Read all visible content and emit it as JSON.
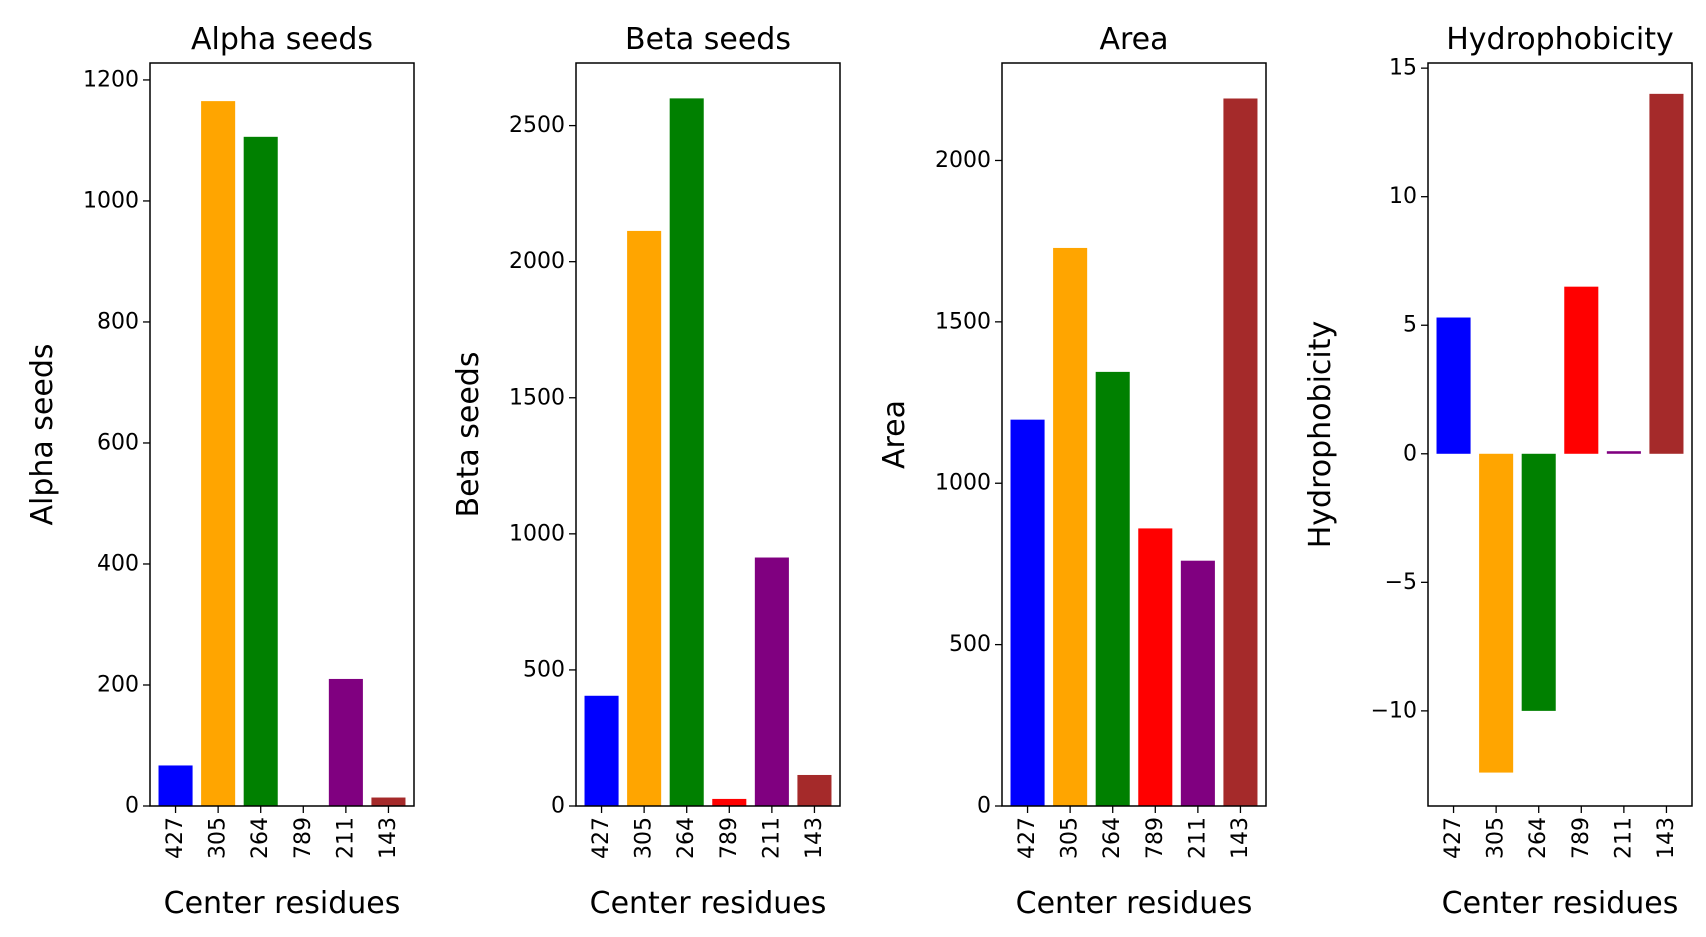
{
  "chart_data": [
    {
      "type": "bar",
      "title": "Alpha seeds",
      "xlabel": "Center residues",
      "ylabel": "Alpha seeds",
      "categories": [
        "427",
        "305",
        "264",
        "789",
        "211",
        "143"
      ],
      "values": [
        67,
        1165,
        1106,
        0,
        210,
        14
      ],
      "colors": [
        "#0000ff",
        "#ffa500",
        "#008000",
        "#ff0000",
        "#800080",
        "#a52a2a"
      ],
      "ylim": [
        0,
        1228
      ],
      "yticks": [
        0,
        200,
        400,
        600,
        800,
        1000,
        1200
      ]
    },
    {
      "type": "bar",
      "title": "Beta seeds",
      "xlabel": "Center residues",
      "ylabel": "Beta seeds",
      "categories": [
        "427",
        "305",
        "264",
        "789",
        "211",
        "143"
      ],
      "values": [
        405,
        2113,
        2600,
        26,
        913,
        114
      ],
      "colors": [
        "#0000ff",
        "#ffa500",
        "#008000",
        "#ff0000",
        "#800080",
        "#a52a2a"
      ],
      "ylim": [
        0,
        2730
      ],
      "yticks": [
        0,
        500,
        1000,
        1500,
        2000,
        2500
      ]
    },
    {
      "type": "bar",
      "title": "Area",
      "xlabel": "Center residues",
      "ylabel": "Area",
      "categories": [
        "427",
        "305",
        "264",
        "789",
        "211",
        "143"
      ],
      "values": [
        1197,
        1729,
        1345,
        860,
        760,
        2192
      ],
      "colors": [
        "#0000ff",
        "#ffa500",
        "#008000",
        "#ff0000",
        "#800080",
        "#a52a2a"
      ],
      "ylim": [
        0,
        2302
      ],
      "yticks": [
        0,
        500,
        1000,
        1500,
        2000
      ]
    },
    {
      "type": "bar",
      "title": "Hydrophobicity",
      "xlabel": "Center residues",
      "ylabel": "Hydrophobicity",
      "categories": [
        "427",
        "305",
        "264",
        "789",
        "211",
        "143"
      ],
      "values": [
        5.3,
        -12.4,
        -10.0,
        6.5,
        0.1,
        14.0
      ],
      "colors": [
        "#0000ff",
        "#ffa500",
        "#008000",
        "#ff0000",
        "#800080",
        "#a52a2a"
      ],
      "ylim": [
        -13.7,
        15.2
      ],
      "yticks": [
        -10,
        -5,
        0,
        5,
        10,
        15
      ],
      "ytick_labels": [
        "−10",
        "−5",
        "0",
        "5",
        "10",
        "15"
      ]
    }
  ]
}
